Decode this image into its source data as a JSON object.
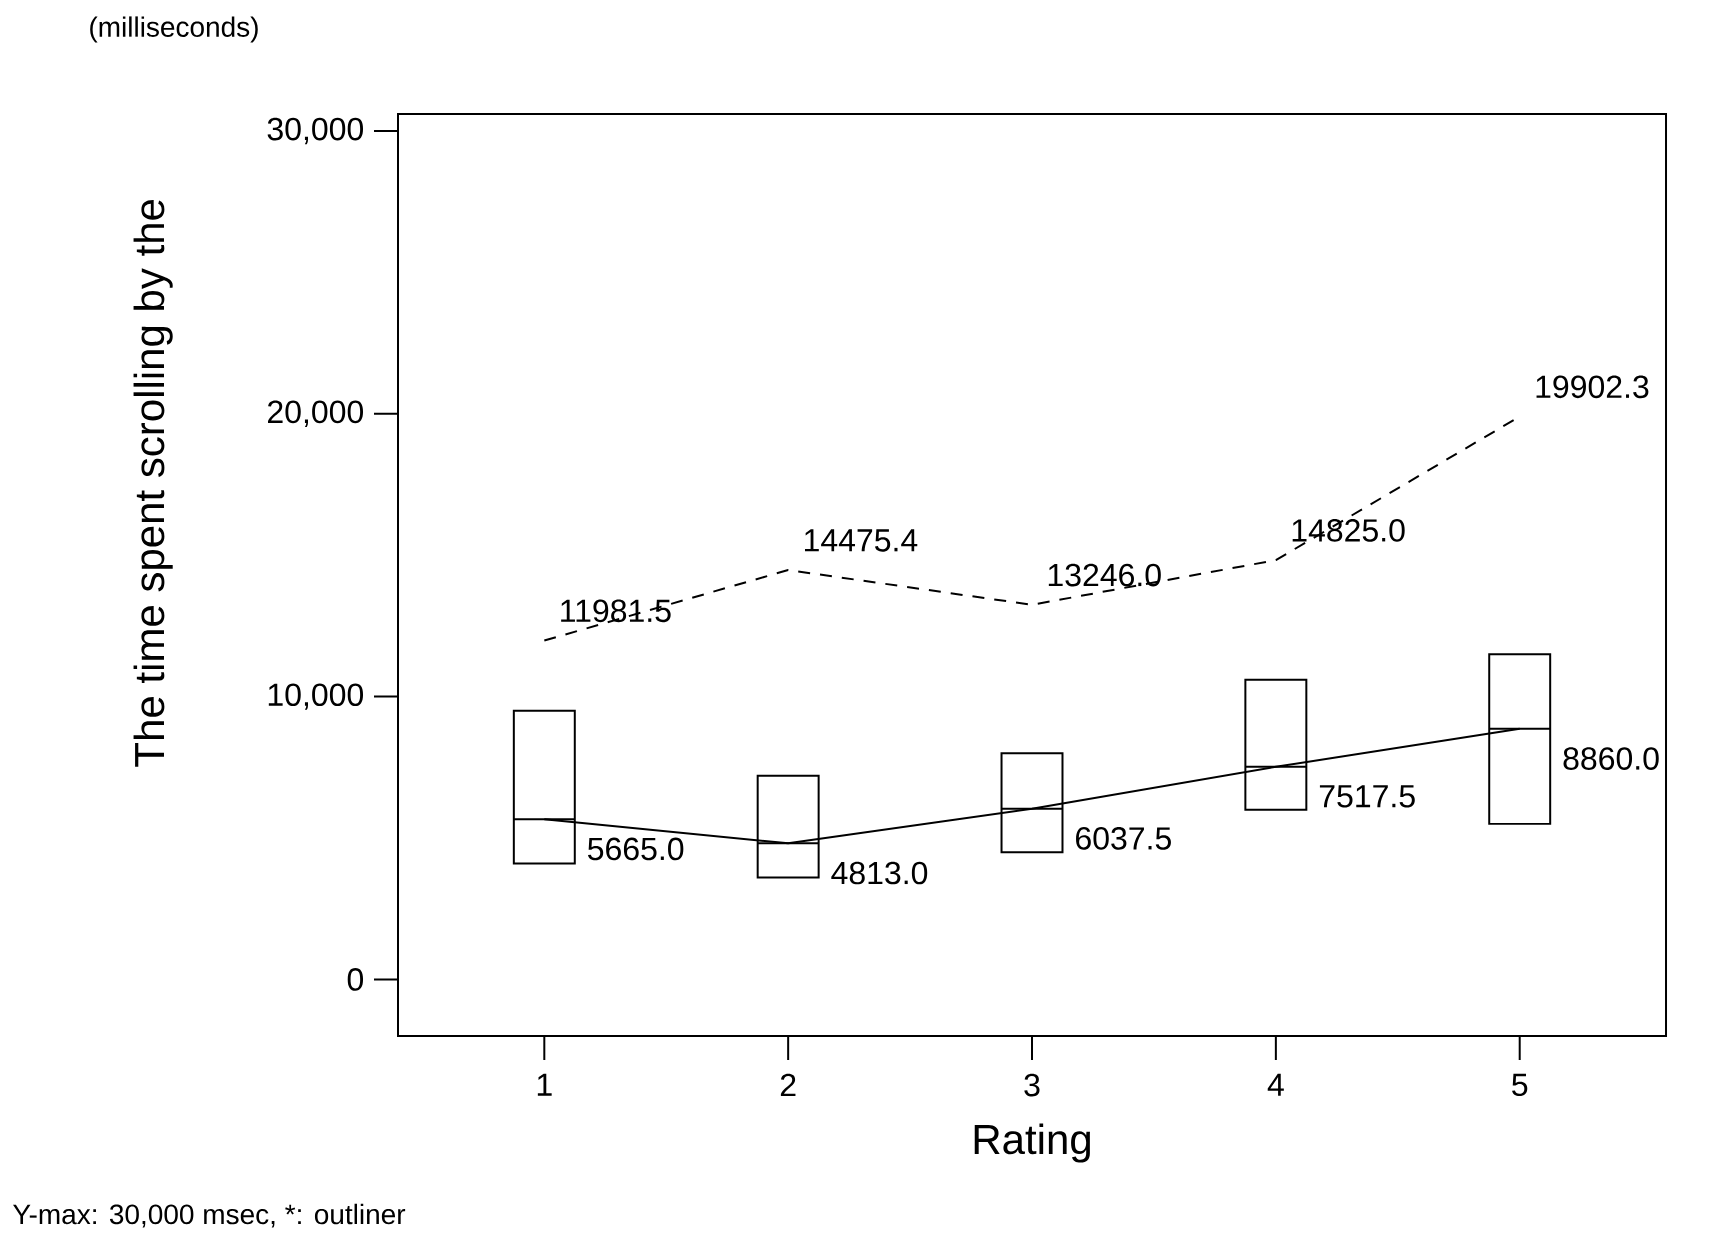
{
  "chart_data": {
    "type": "box",
    "subtitle": "(milliseconds)",
    "xlabel": "Rating",
    "ylabel": "The time spent scrolling by the",
    "annotations": [
      "Y-max: 30,000 msec, *: outliner"
    ],
    "categories": [
      "1",
      "2",
      "3",
      "4",
      "5"
    ],
    "boxes": [
      {
        "low": 4100,
        "q1": 4100,
        "median": 5665.0,
        "q3": 9500,
        "high": 9500
      },
      {
        "low": 3600,
        "q1": 3600,
        "median": 4813.0,
        "q3": 7200,
        "high": 7200
      },
      {
        "low": 4500,
        "q1": 4500,
        "median": 6037.5,
        "q3": 8000,
        "high": 8000
      },
      {
        "low": 6000,
        "q1": 6000,
        "median": 7517.5,
        "q3": 10600,
        "high": 10600
      },
      {
        "low": 5500,
        "q1": 5500,
        "median": 8860.0,
        "q3": 11500,
        "high": 11500
      }
    ],
    "series": [
      {
        "type": "line",
        "color": "#000000",
        "line_style": "solid",
        "values": [
          5665.0,
          4813.0,
          6037.5,
          7517.5,
          8860.0
        ],
        "value_labels": [
          "5665.0",
          "4813.0",
          "6037.5",
          "7517.5",
          "8860.0"
        ]
      },
      {
        "type": "line",
        "color": "#000000",
        "line_style": "dashed",
        "values": [
          11981.5,
          14475.4,
          13246.0,
          14825.0,
          19902.3
        ],
        "value_labels": [
          "11981.5",
          "14475.4",
          "13246.0",
          "14825.0",
          "19902.3"
        ]
      }
    ],
    "ylim": [
      -2000,
      30600
    ],
    "yticks": [
      {
        "value": 0,
        "label": "0"
      },
      {
        "value": 10000,
        "label": "10,000"
      },
      {
        "value": 20000,
        "label": "20,000"
      },
      {
        "value": 30000,
        "label": "30,000"
      }
    ]
  }
}
